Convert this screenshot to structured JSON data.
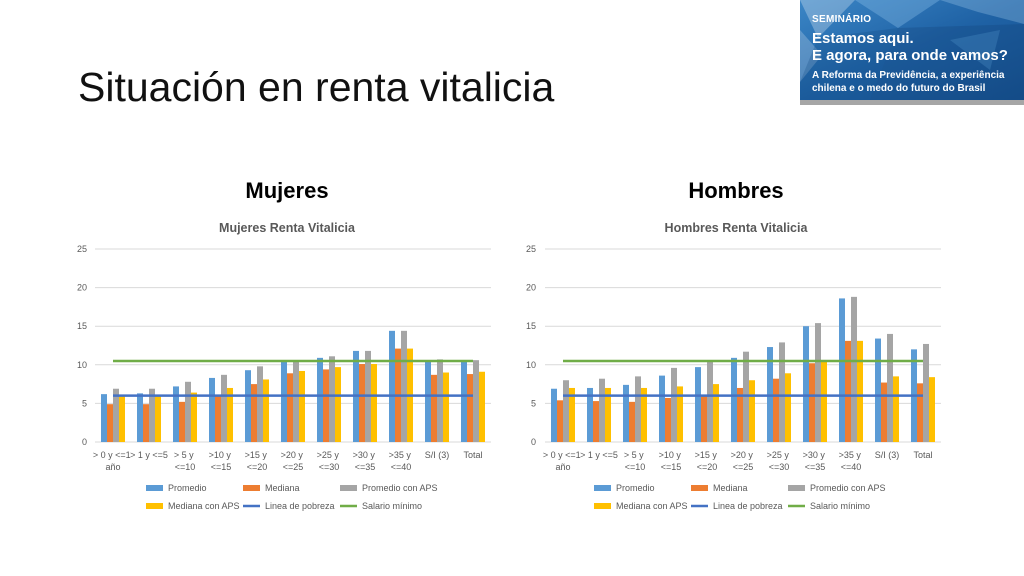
{
  "slide": {
    "title": "Situación en renta vitalicia"
  },
  "banner": {
    "label": "SEMINÁRIO",
    "headline_line1": "Estamos aqui.",
    "headline_line2": "E agora, para onde vamos?",
    "subtitle_line1": "A Reforma da Previdência, a experiência",
    "subtitle_line2": "chilena e o medo do futuro do Brasil"
  },
  "sections": [
    {
      "heading": "Mujeres"
    },
    {
      "heading": "Hombres"
    }
  ],
  "chart_data": [
    {
      "type": "bar",
      "title": "Mujeres Renta Vitalicia",
      "categories": [
        "> 0 y <=1 año",
        "> 1 y <=5",
        "> 5 y <=10",
        ">10 y <=15",
        ">15 y <=20",
        ">20 y <=25",
        ">25 y <=30",
        ">30 y <=35",
        ">35 y <=40",
        "S/I (3)",
        "Total"
      ],
      "ylim": [
        0,
        25
      ],
      "yticks": [
        0,
        5,
        10,
        15,
        20,
        25
      ],
      "grid": true,
      "legend_position": "bottom",
      "series": [
        {
          "name": "Promedio",
          "type": "bar",
          "color": "#5B9BD5",
          "values": [
            6.2,
            6.3,
            7.2,
            8.3,
            9.3,
            10.5,
            10.9,
            11.8,
            14.4,
            10.4,
            10.5
          ]
        },
        {
          "name": "Mediana",
          "type": "bar",
          "color": "#ED7D31",
          "values": [
            4.9,
            4.9,
            5.2,
            6.1,
            7.5,
            8.9,
            9.4,
            10.1,
            12.1,
            8.7,
            8.8
          ]
        },
        {
          "name": "Promedio con APS",
          "type": "bar",
          "color": "#A5A5A5",
          "values": [
            6.9,
            6.9,
            7.8,
            8.7,
            9.8,
            10.6,
            11.1,
            11.8,
            14.4,
            10.7,
            10.6
          ]
        },
        {
          "name": "Mediana con APS",
          "type": "bar",
          "color": "#FFC000",
          "values": [
            6.1,
            6.0,
            6.4,
            7.0,
            8.1,
            9.2,
            9.7,
            10.1,
            12.1,
            9.0,
            9.1
          ]
        },
        {
          "name": "Linea de pobreza",
          "type": "line",
          "color": "#4472C4",
          "values": [
            6.0,
            6.0,
            6.0,
            6.0,
            6.0,
            6.0,
            6.0,
            6.0,
            6.0,
            6.0,
            6.0
          ]
        },
        {
          "name": "Salario mínimo",
          "type": "line",
          "color": "#70AD47",
          "values": [
            10.5,
            10.5,
            10.5,
            10.5,
            10.5,
            10.5,
            10.5,
            10.5,
            10.5,
            10.5,
            10.5
          ]
        }
      ]
    },
    {
      "type": "bar",
      "title": "Hombres Renta Vitalicia",
      "categories": [
        "> 0 y <=1 año",
        "> 1 y <=5",
        "> 5 y <=10",
        ">10 y <=15",
        ">15 y <=20",
        ">20 y <=25",
        ">25 y <=30",
        ">30 y <=35",
        ">35 y <=40",
        "S/I (3)",
        "Total"
      ],
      "ylim": [
        0,
        25
      ],
      "yticks": [
        0,
        5,
        10,
        15,
        20,
        25
      ],
      "grid": true,
      "legend_position": "bottom",
      "series": [
        {
          "name": "Promedio",
          "type": "bar",
          "color": "#5B9BD5",
          "values": [
            6.9,
            7.0,
            7.4,
            8.6,
            9.7,
            10.9,
            12.3,
            15.0,
            18.6,
            13.4,
            12.0
          ]
        },
        {
          "name": "Mediana",
          "type": "bar",
          "color": "#ED7D31",
          "values": [
            5.4,
            5.3,
            5.2,
            5.7,
            6.1,
            7.0,
            8.2,
            10.2,
            13.1,
            7.7,
            7.6
          ]
        },
        {
          "name": "Promedio con APS",
          "type": "bar",
          "color": "#A5A5A5",
          "values": [
            8.0,
            8.2,
            8.5,
            9.6,
            10.5,
            11.7,
            12.9,
            15.4,
            18.8,
            14.0,
            12.7
          ]
        },
        {
          "name": "Mediana con APS",
          "type": "bar",
          "color": "#FFC000",
          "values": [
            7.0,
            7.0,
            7.0,
            7.2,
            7.5,
            8.0,
            8.9,
            10.5,
            13.1,
            8.5,
            8.4
          ]
        },
        {
          "name": "Linea de pobreza",
          "type": "line",
          "color": "#4472C4",
          "values": [
            6.0,
            6.0,
            6.0,
            6.0,
            6.0,
            6.0,
            6.0,
            6.0,
            6.0,
            6.0,
            6.0
          ]
        },
        {
          "name": "Salario mínimo",
          "type": "line",
          "color": "#70AD47",
          "values": [
            10.5,
            10.5,
            10.5,
            10.5,
            10.5,
            10.5,
            10.5,
            10.5,
            10.5,
            10.5,
            10.5
          ]
        }
      ]
    }
  ]
}
